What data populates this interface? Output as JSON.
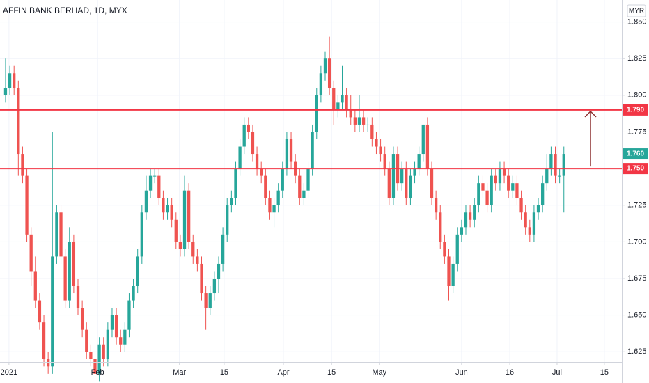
{
  "chart_data": {
    "type": "candlestick",
    "title": "AFFIN BANK BERHAD, 1D, MYX",
    "currency": "MYR",
    "up_color": "#26a69a",
    "down_color": "#ef5350",
    "level_color": "#f23645",
    "grid": true,
    "xlim": [
      -1.3,
      144.6
    ],
    "ylim": [
      1.618,
      1.865
    ],
    "yticks": [
      {
        "value": 1.625,
        "label": "1.625"
      },
      {
        "value": 1.65,
        "label": "1.650"
      },
      {
        "value": 1.675,
        "label": "1.675"
      },
      {
        "value": 1.7,
        "label": "1.700"
      },
      {
        "value": 1.725,
        "label": "1.725"
      },
      {
        "value": 1.75,
        "label": "1.750"
      },
      {
        "value": 1.775,
        "label": "1.775"
      },
      {
        "value": 1.8,
        "label": "1.800"
      },
      {
        "value": 1.825,
        "label": "1.825"
      },
      {
        "value": 1.85,
        "label": "1.850"
      }
    ],
    "xticks": [
      {
        "value": 0.8,
        "label": "2021"
      },
      {
        "value": 21.6,
        "label": "Feb"
      },
      {
        "value": 40.8,
        "label": "Mar"
      },
      {
        "value": 51.3,
        "label": "15"
      },
      {
        "value": 65.2,
        "label": "Apr"
      },
      {
        "value": 76.5,
        "label": "15"
      },
      {
        "value": 87.7,
        "label": "May"
      },
      {
        "value": 107,
        "label": "Jun"
      },
      {
        "value": 118.3,
        "label": "16"
      },
      {
        "value": 129.4,
        "label": "Jul"
      },
      {
        "value": 140.5,
        "label": "15"
      }
    ],
    "levels": [
      {
        "value": 1.79,
        "label": "1.790"
      },
      {
        "value": 1.75,
        "label": "1.750"
      }
    ],
    "last_price": {
      "value": 1.76,
      "label": "1.760"
    },
    "candles": [
      [
        1.8,
        1.825,
        1.795,
        1.805
      ],
      [
        1.805,
        1.82,
        1.8,
        1.815
      ],
      [
        1.815,
        1.82,
        1.8,
        1.805
      ],
      [
        1.805,
        1.81,
        1.745,
        1.76
      ],
      [
        1.76,
        1.765,
        1.74,
        1.745
      ],
      [
        1.745,
        1.75,
        1.7,
        1.705
      ],
      [
        1.705,
        1.71,
        1.67,
        1.68
      ],
      [
        1.68,
        1.69,
        1.655,
        1.66
      ],
      [
        1.66,
        1.665,
        1.64,
        1.645
      ],
      [
        1.645,
        1.65,
        1.615,
        1.62
      ],
      [
        1.62,
        1.625,
        1.61,
        1.615
      ],
      [
        1.615,
        1.775,
        1.61,
        1.69
      ],
      [
        1.69,
        1.725,
        1.685,
        1.72
      ],
      [
        1.72,
        1.725,
        1.685,
        1.69
      ],
      [
        1.69,
        1.695,
        1.655,
        1.66
      ],
      [
        1.66,
        1.71,
        1.655,
        1.7
      ],
      [
        1.7,
        1.705,
        1.665,
        1.67
      ],
      [
        1.67,
        1.675,
        1.65,
        1.655
      ],
      [
        1.655,
        1.66,
        1.635,
        1.64
      ],
      [
        1.64,
        1.645,
        1.62,
        1.625
      ],
      [
        1.625,
        1.63,
        1.615,
        1.62
      ],
      [
        1.62,
        1.625,
        1.605,
        1.61
      ],
      [
        1.61,
        1.635,
        1.605,
        1.63
      ],
      [
        1.63,
        1.635,
        1.615,
        1.62
      ],
      [
        1.62,
        1.645,
        1.615,
        1.64
      ],
      [
        1.64,
        1.655,
        1.635,
        1.65
      ],
      [
        1.65,
        1.655,
        1.63,
        1.635
      ],
      [
        1.635,
        1.64,
        1.625,
        1.63
      ],
      [
        1.63,
        1.645,
        1.625,
        1.64
      ],
      [
        1.64,
        1.665,
        1.635,
        1.66
      ],
      [
        1.66,
        1.675,
        1.655,
        1.67
      ],
      [
        1.67,
        1.695,
        1.665,
        1.69
      ],
      [
        1.69,
        1.725,
        1.685,
        1.72
      ],
      [
        1.72,
        1.745,
        1.715,
        1.735
      ],
      [
        1.735,
        1.75,
        1.73,
        1.745
      ],
      [
        1.745,
        1.75,
        1.74,
        1.745
      ],
      [
        1.745,
        1.75,
        1.725,
        1.73
      ],
      [
        1.73,
        1.735,
        1.715,
        1.72
      ],
      [
        1.72,
        1.73,
        1.715,
        1.725
      ],
      [
        1.725,
        1.73,
        1.71,
        1.715
      ],
      [
        1.715,
        1.72,
        1.695,
        1.7
      ],
      [
        1.7,
        1.705,
        1.69,
        1.695
      ],
      [
        1.695,
        1.745,
        1.69,
        1.735
      ],
      [
        1.735,
        1.74,
        1.695,
        1.7
      ],
      [
        1.7,
        1.705,
        1.685,
        1.69
      ],
      [
        1.69,
        1.695,
        1.68,
        1.685
      ],
      [
        1.685,
        1.69,
        1.66,
        1.665
      ],
      [
        1.665,
        1.67,
        1.64,
        1.655
      ],
      [
        1.655,
        1.67,
        1.65,
        1.665
      ],
      [
        1.665,
        1.68,
        1.66,
        1.675
      ],
      [
        1.675,
        1.69,
        1.665,
        1.685
      ],
      [
        1.685,
        1.71,
        1.68,
        1.705
      ],
      [
        1.705,
        1.73,
        1.7,
        1.725
      ],
      [
        1.725,
        1.735,
        1.72,
        1.73
      ],
      [
        1.73,
        1.755,
        1.725,
        1.75
      ],
      [
        1.75,
        1.77,
        1.745,
        1.765
      ],
      [
        1.765,
        1.785,
        1.76,
        1.78
      ],
      [
        1.78,
        1.785,
        1.77,
        1.775
      ],
      [
        1.775,
        1.78,
        1.755,
        1.76
      ],
      [
        1.76,
        1.765,
        1.745,
        1.75
      ],
      [
        1.75,
        1.755,
        1.74,
        1.745
      ],
      [
        1.745,
        1.75,
        1.725,
        1.73
      ],
      [
        1.73,
        1.735,
        1.715,
        1.72
      ],
      [
        1.72,
        1.73,
        1.71,
        1.725
      ],
      [
        1.725,
        1.74,
        1.72,
        1.735
      ],
      [
        1.735,
        1.755,
        1.73,
        1.75
      ],
      [
        1.75,
        1.775,
        1.745,
        1.77
      ],
      [
        1.77,
        1.775,
        1.75,
        1.755
      ],
      [
        1.755,
        1.76,
        1.74,
        1.745
      ],
      [
        1.745,
        1.75,
        1.725,
        1.73
      ],
      [
        1.73,
        1.74,
        1.725,
        1.735
      ],
      [
        1.735,
        1.755,
        1.73,
        1.75
      ],
      [
        1.75,
        1.78,
        1.745,
        1.775
      ],
      [
        1.775,
        1.805,
        1.77,
        1.8
      ],
      [
        1.8,
        1.82,
        1.795,
        1.815
      ],
      [
        1.815,
        1.83,
        1.81,
        1.825
      ],
      [
        1.825,
        1.84,
        1.8,
        1.805
      ],
      [
        1.805,
        1.81,
        1.78,
        1.79
      ],
      [
        1.79,
        1.8,
        1.785,
        1.795
      ],
      [
        1.795,
        1.82,
        1.79,
        1.8
      ],
      [
        1.8,
        1.805,
        1.785,
        1.79
      ],
      [
        1.79,
        1.8,
        1.78,
        1.785
      ],
      [
        1.785,
        1.79,
        1.775,
        1.78
      ],
      [
        1.78,
        1.8,
        1.775,
        1.785
      ],
      [
        1.785,
        1.79,
        1.775,
        1.78
      ],
      [
        1.78,
        1.785,
        1.775,
        1.78
      ],
      [
        1.78,
        1.785,
        1.765,
        1.77
      ],
      [
        1.77,
        1.775,
        1.76,
        1.765
      ],
      [
        1.765,
        1.77,
        1.755,
        1.76
      ],
      [
        1.76,
        1.765,
        1.745,
        1.75
      ],
      [
        1.75,
        1.755,
        1.725,
        1.73
      ],
      [
        1.73,
        1.765,
        1.725,
        1.76
      ],
      [
        1.76,
        1.765,
        1.735,
        1.74
      ],
      [
        1.74,
        1.755,
        1.735,
        1.75
      ],
      [
        1.75,
        1.755,
        1.725,
        1.73
      ],
      [
        1.73,
        1.75,
        1.725,
        1.745
      ],
      [
        1.745,
        1.755,
        1.74,
        1.75
      ],
      [
        1.75,
        1.765,
        1.745,
        1.76
      ],
      [
        1.76,
        1.78,
        1.755,
        1.78
      ],
      [
        1.78,
        1.785,
        1.745,
        1.75
      ],
      [
        1.75,
        1.755,
        1.725,
        1.73
      ],
      [
        1.73,
        1.735,
        1.715,
        1.72
      ],
      [
        1.72,
        1.725,
        1.695,
        1.7
      ],
      [
        1.7,
        1.705,
        1.685,
        1.69
      ],
      [
        1.69,
        1.695,
        1.66,
        1.67
      ],
      [
        1.67,
        1.69,
        1.665,
        1.685
      ],
      [
        1.685,
        1.71,
        1.68,
        1.705
      ],
      [
        1.705,
        1.715,
        1.7,
        1.71
      ],
      [
        1.71,
        1.725,
        1.705,
        1.72
      ],
      [
        1.72,
        1.725,
        1.71,
        1.715
      ],
      [
        1.715,
        1.73,
        1.71,
        1.725
      ],
      [
        1.725,
        1.745,
        1.72,
        1.74
      ],
      [
        1.74,
        1.745,
        1.73,
        1.735
      ],
      [
        1.735,
        1.74,
        1.72,
        1.725
      ],
      [
        1.725,
        1.75,
        1.72,
        1.745
      ],
      [
        1.745,
        1.75,
        1.735,
        1.74
      ],
      [
        1.74,
        1.755,
        1.735,
        1.75
      ],
      [
        1.75,
        1.755,
        1.74,
        1.745
      ],
      [
        1.745,
        1.75,
        1.73,
        1.735
      ],
      [
        1.735,
        1.745,
        1.73,
        1.74
      ],
      [
        1.74,
        1.745,
        1.725,
        1.73
      ],
      [
        1.73,
        1.735,
        1.715,
        1.72
      ],
      [
        1.72,
        1.725,
        1.705,
        1.71
      ],
      [
        1.71,
        1.715,
        1.7,
        1.705
      ],
      [
        1.705,
        1.725,
        1.7,
        1.72
      ],
      [
        1.72,
        1.73,
        1.715,
        1.725
      ],
      [
        1.725,
        1.745,
        1.72,
        1.74
      ],
      [
        1.74,
        1.76,
        1.735,
        1.75
      ],
      [
        1.75,
        1.765,
        1.745,
        1.76
      ],
      [
        1.76,
        1.765,
        1.74,
        1.745
      ],
      [
        1.745,
        1.75,
        1.74,
        1.745
      ],
      [
        1.745,
        1.765,
        1.72,
        1.76
      ]
    ]
  }
}
